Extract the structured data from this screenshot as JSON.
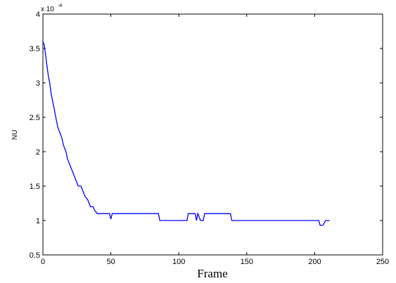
{
  "chart_data": {
    "type": "line",
    "title": "",
    "xlabel": "Frame",
    "ylabel": "NU",
    "y_multiplier": {
      "base": "x 10",
      "exponent": "-4"
    },
    "xlim": [
      0,
      250
    ],
    "ylim": [
      0.5,
      4
    ],
    "xticks": [
      0,
      50,
      100,
      150,
      200,
      250
    ],
    "yticks": [
      0.5,
      1,
      1.5,
      2,
      2.5,
      3,
      3.5,
      4
    ],
    "grid": false,
    "legend": "none",
    "series": [
      {
        "color": "#0000ff",
        "points": [
          [
            0,
            3.6
          ],
          [
            1,
            3.55
          ],
          [
            2,
            3.4
          ],
          [
            3,
            3.25
          ],
          [
            4,
            3.1
          ],
          [
            5,
            3.0
          ],
          [
            6,
            2.85
          ],
          [
            7,
            2.75
          ],
          [
            8,
            2.65
          ],
          [
            9,
            2.55
          ],
          [
            10,
            2.45
          ],
          [
            11,
            2.35
          ],
          [
            12,
            2.3
          ],
          [
            13,
            2.25
          ],
          [
            14,
            2.2
          ],
          [
            15,
            2.1
          ],
          [
            16,
            2.05
          ],
          [
            17,
            2.0
          ],
          [
            18,
            1.9
          ],
          [
            19,
            1.85
          ],
          [
            20,
            1.8
          ],
          [
            21,
            1.75
          ],
          [
            22,
            1.7
          ],
          [
            23,
            1.65
          ],
          [
            24,
            1.6
          ],
          [
            25,
            1.55
          ],
          [
            26,
            1.5
          ],
          [
            28,
            1.5
          ],
          [
            29,
            1.45
          ],
          [
            30,
            1.4
          ],
          [
            31,
            1.35
          ],
          [
            33,
            1.3
          ],
          [
            34,
            1.25
          ],
          [
            35,
            1.2
          ],
          [
            37,
            1.2
          ],
          [
            38,
            1.15
          ],
          [
            40,
            1.1
          ],
          [
            49,
            1.1
          ],
          [
            50,
            1.02
          ],
          [
            51,
            1.1
          ],
          [
            85,
            1.1
          ],
          [
            86,
            1.0
          ],
          [
            106,
            1.0
          ],
          [
            107,
            1.1
          ],
          [
            112,
            1.1
          ],
          [
            113,
            1.0
          ],
          [
            114,
            1.1
          ],
          [
            116,
            1.0
          ],
          [
            118,
            1.0
          ],
          [
            119,
            1.1
          ],
          [
            121,
            1.1
          ],
          [
            122,
            1.1
          ],
          [
            138,
            1.1
          ],
          [
            139,
            1.0
          ],
          [
            203,
            1.0
          ],
          [
            204,
            0.93
          ],
          [
            206,
            0.93
          ],
          [
            208,
            1.0
          ],
          [
            211,
            1.0
          ]
        ]
      }
    ]
  }
}
